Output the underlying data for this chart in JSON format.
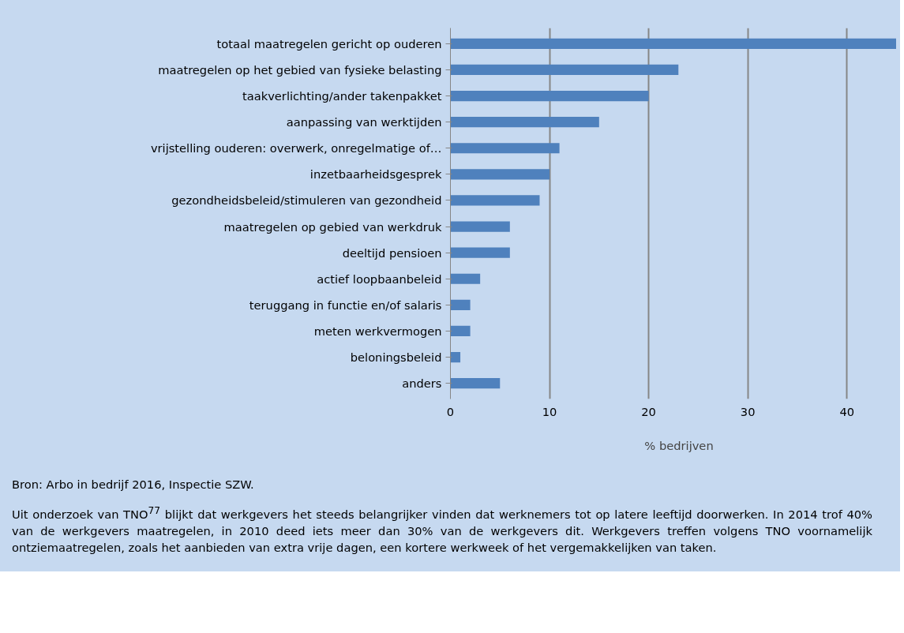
{
  "chart_data": {
    "type": "bar",
    "orientation": "horizontal",
    "categories": [
      "totaal maatregelen gericht op ouderen",
      "maatregelen op het gebied van fysieke belasting",
      "taakverlichting/ander takenpakket",
      "aanpassing van werktijden",
      "vrijstelling ouderen: overwerk, onregelmatige of…",
      "inzetbaarheidsgesprek",
      "gezondheidsbeleid/stimuleren van gezondheid",
      "maatregelen op gebied van werkdruk",
      "deeltijd pensioen",
      "actief loopbaanbeleid",
      "teruggang in functie en/of salaris",
      "meten werkvermogen",
      "beloningsbeleid",
      "anders"
    ],
    "series": [
      {
        "name": "% bedrijven",
        "color": "#4f81bd",
        "values": [
          45,
          23,
          20,
          15,
          11,
          10,
          9,
          6,
          6,
          3,
          2,
          2,
          1,
          5
        ]
      }
    ],
    "xlim": [
      0,
      45
    ],
    "xticks": [
      0,
      10,
      20,
      30,
      40
    ],
    "grid": "x",
    "legend": "bottom",
    "annotations": [
      "Bron: Arbo in bedrijf 2016, Inspectie SZW.",
      "Uit onderzoek van TNO$^{77}$ blijkt dat werkgevers het steeds belangrijker vinden dat werknemers tot op latere leeftijd doorwerken. In 2014 trof 40% van de werkgevers maatregelen, in 2010 deed iets meer dan 30% van de werkgevers dit. Werkgevers treffen volgens TNO voornamelijk ontziemaatregelen, zoals het aanbieden van extra vrije dagen, een kortere werkweek of het vergemakkelijken van taken."
    ]
  }
}
